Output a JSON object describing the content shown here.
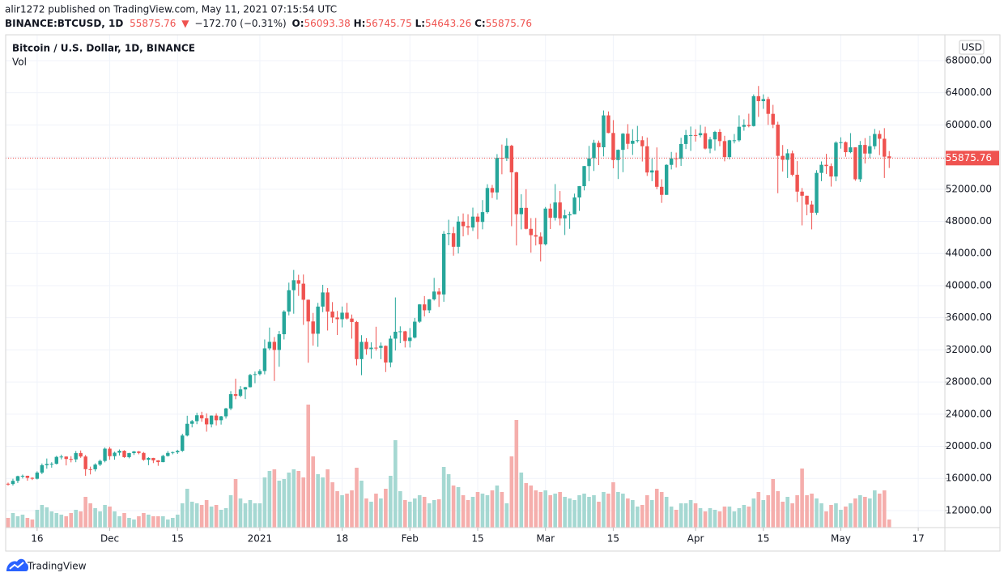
{
  "header": {
    "published": "alir1272 published on TradingView.com, May 11, 2021 07:15:54 UTC",
    "symbol": "BINANCE:BTCUSD, 1D",
    "last": "55875.76",
    "arrow": "▼",
    "change": "−172.70 (−0.31%)",
    "ohlc": [
      {
        "label": "O:",
        "value": "56093.38"
      },
      {
        "label": "H:",
        "value": "56745.75"
      },
      {
        "label": "L:",
        "value": "54643.26"
      },
      {
        "label": "C:",
        "value": "55875.76"
      }
    ]
  },
  "footer": {
    "brand": "TradingView"
  },
  "chart_data": {
    "type": "candlestick",
    "title": "Bitcoin / U.S. Dollar, 1D, BINANCE",
    "volume_label": "Vol",
    "currency": "USD",
    "colors": {
      "up": "#26a69a",
      "down": "#ef5350",
      "volume_up": "#a5d8d2",
      "volume_down": "#f5aeac"
    },
    "grid": true,
    "last_price": 55875.76,
    "ylim": [
      9880,
      71220
    ],
    "yticks": [
      {
        "value": 12000,
        "label": "12000.00"
      },
      {
        "value": 16000,
        "label": "16000.00"
      },
      {
        "value": 20000,
        "label": "20000.00"
      },
      {
        "value": 24000,
        "label": "24000.00"
      },
      {
        "value": 28000,
        "label": "28000.00"
      },
      {
        "value": 32000,
        "label": "32000.00"
      },
      {
        "value": 36000,
        "label": "36000.00"
      },
      {
        "value": 40000,
        "label": "40000.00"
      },
      {
        "value": 44000,
        "label": "44000.00"
      },
      {
        "value": 48000,
        "label": "48000.00"
      },
      {
        "value": 52000,
        "label": "52000.00"
      },
      {
        "value": 56000,
        "label": "56000.00"
      },
      {
        "value": 60000,
        "label": "60000.00"
      },
      {
        "value": 64000,
        "label": "64000.00"
      },
      {
        "value": 68000,
        "label": "68000.00"
      }
    ],
    "xlim": [
      -0.5,
      193.5
    ],
    "xticks": [
      {
        "value": 6,
        "label": "16"
      },
      {
        "value": 21,
        "label": "Dec"
      },
      {
        "value": 35,
        "label": "15"
      },
      {
        "value": 52,
        "label": "2021"
      },
      {
        "value": 69,
        "label": "18"
      },
      {
        "value": 83,
        "label": "Feb"
      },
      {
        "value": 97,
        "label": "15"
      },
      {
        "value": 111,
        "label": "Mar"
      },
      {
        "value": 125,
        "label": "15"
      },
      {
        "value": 142,
        "label": "Apr"
      },
      {
        "value": 156,
        "label": "15"
      },
      {
        "value": 172,
        "label": "May"
      },
      {
        "value": 188,
        "label": "17"
      }
    ],
    "candles": [
      [
        15340,
        15480,
        15100,
        15300
      ],
      [
        15300,
        15960,
        15110,
        15700
      ],
      [
        15700,
        16340,
        15430,
        16280
      ],
      [
        16280,
        16480,
        15990,
        16330
      ],
      [
        16330,
        16340,
        15710,
        16070
      ],
      [
        16070,
        16150,
        15800,
        15960
      ],
      [
        15960,
        16890,
        15870,
        16720
      ],
      [
        16720,
        17860,
        16530,
        17650
      ],
      [
        17650,
        18480,
        17210,
        17800
      ],
      [
        17800,
        18020,
        17340,
        17820
      ],
      [
        17820,
        18810,
        17740,
        18680
      ],
      [
        18680,
        18960,
        18370,
        18720
      ],
      [
        18720,
        18750,
        17620,
        18420
      ],
      [
        18420,
        18770,
        18000,
        18370
      ],
      [
        18370,
        19420,
        18020,
        19160
      ],
      [
        19160,
        19480,
        18560,
        18730
      ],
      [
        18730,
        18920,
        16330,
        17150
      ],
      [
        17150,
        17470,
        16500,
        17140
      ],
      [
        17140,
        17880,
        16880,
        17720
      ],
      [
        17720,
        18350,
        17540,
        18180
      ],
      [
        18180,
        19860,
        18000,
        19700
      ],
      [
        19700,
        19920,
        18320,
        18770
      ],
      [
        18770,
        19340,
        18330,
        19200
      ],
      [
        19200,
        19600,
        18860,
        19440
      ],
      [
        19440,
        19510,
        18560,
        18650
      ],
      [
        18650,
        19180,
        18500,
        19150
      ],
      [
        19150,
        19420,
        18920,
        19360
      ],
      [
        19360,
        19410,
        19000,
        19170
      ],
      [
        19170,
        19290,
        18200,
        18320
      ],
      [
        18320,
        18640,
        17650,
        18550
      ],
      [
        18550,
        18560,
        17910,
        18250
      ],
      [
        18250,
        18270,
        17570,
        18030
      ],
      [
        18030,
        18950,
        18010,
        18800
      ],
      [
        18800,
        19410,
        18720,
        19170
      ],
      [
        19170,
        19350,
        19000,
        19270
      ],
      [
        19270,
        19560,
        19050,
        19440
      ],
      [
        19440,
        21560,
        19300,
        21340
      ],
      [
        21340,
        23800,
        21230,
        22800
      ],
      [
        22800,
        23280,
        22350,
        23130
      ],
      [
        23130,
        24170,
        22750,
        23860
      ],
      [
        23860,
        24300,
        23060,
        23480
      ],
      [
        23480,
        24100,
        21820,
        22730
      ],
      [
        22730,
        23840,
        22350,
        23820
      ],
      [
        23820,
        24100,
        22600,
        23240
      ],
      [
        23240,
        23780,
        22700,
        23730
      ],
      [
        23730,
        24790,
        23450,
        24710
      ],
      [
        24710,
        26870,
        24500,
        26490
      ],
      [
        26490,
        28420,
        25860,
        26280
      ],
      [
        26280,
        27500,
        26100,
        27080
      ],
      [
        27080,
        27400,
        25880,
        27360
      ],
      [
        27360,
        29020,
        27320,
        28880
      ],
      [
        28880,
        29300,
        27850,
        28980
      ],
      [
        28980,
        29600,
        28800,
        29370
      ],
      [
        29370,
        33300,
        28950,
        32190
      ],
      [
        32190,
        34780,
        31950,
        33000
      ],
      [
        33000,
        33600,
        28130,
        31990
      ],
      [
        31990,
        34360,
        29900,
        33950
      ],
      [
        33950,
        36940,
        33300,
        36770
      ],
      [
        36770,
        40370,
        36300,
        39430
      ],
      [
        39430,
        41950,
        36500,
        40670
      ],
      [
        40670,
        41350,
        38720,
        40240
      ],
      [
        40240,
        41380,
        35110,
        38240
      ],
      [
        38240,
        38260,
        30400,
        35540
      ],
      [
        35540,
        36600,
        32530,
        34010
      ],
      [
        34010,
        37850,
        32380,
        37390
      ],
      [
        37390,
        40100,
        36700,
        39150
      ],
      [
        39150,
        39700,
        34410,
        36770
      ],
      [
        36770,
        37950,
        35360,
        36030
      ],
      [
        36030,
        36850,
        33850,
        35820
      ],
      [
        35820,
        37400,
        34800,
        36630
      ],
      [
        36630,
        37850,
        35770,
        35900
      ],
      [
        35900,
        36400,
        33400,
        35470
      ],
      [
        35470,
        35600,
        30070,
        30850
      ],
      [
        30850,
        33830,
        28850,
        33000
      ],
      [
        33000,
        33460,
        31390,
        32100
      ],
      [
        32100,
        32940,
        30900,
        32280
      ],
      [
        32280,
        34880,
        31910,
        32260
      ],
      [
        32260,
        32920,
        30840,
        32500
      ],
      [
        32500,
        32550,
        29240,
        30430
      ],
      [
        30430,
        33780,
        29840,
        33400
      ],
      [
        33400,
        38530,
        31920,
        34260
      ],
      [
        34260,
        34930,
        32840,
        34310
      ],
      [
        34310,
        34370,
        32300,
        33110
      ],
      [
        33110,
        34720,
        32300,
        33530
      ],
      [
        33530,
        35980,
        33420,
        35510
      ],
      [
        35510,
        37700,
        35360,
        37660
      ],
      [
        37660,
        38700,
        36160,
        36930
      ],
      [
        36930,
        38320,
        36570,
        38290
      ],
      [
        38290,
        40960,
        38140,
        39260
      ],
      [
        39260,
        39700,
        37350,
        38900
      ],
      [
        38900,
        46790,
        37990,
        46450
      ],
      [
        46450,
        48200,
        45020,
        46520
      ],
      [
        46520,
        47310,
        43730,
        44840
      ],
      [
        44840,
        48630,
        44000,
        47970
      ],
      [
        47970,
        48980,
        46130,
        47400
      ],
      [
        47400,
        48880,
        46300,
        47230
      ],
      [
        47230,
        49710,
        46800,
        48590
      ],
      [
        48590,
        49000,
        45800,
        47930
      ],
      [
        47930,
        50650,
        47010,
        49150
      ],
      [
        49150,
        52620,
        48950,
        52150
      ],
      [
        52150,
        52530,
        50900,
        51600
      ],
      [
        51600,
        56370,
        50710,
        55900
      ],
      [
        55900,
        57560,
        53860,
        55840
      ],
      [
        55840,
        58350,
        55510,
        57410
      ],
      [
        57410,
        57530,
        47400,
        54100
      ],
      [
        54100,
        54180,
        45000,
        48890
      ],
      [
        48890,
        51370,
        47000,
        49680
      ],
      [
        49680,
        52000,
        46990,
        47070
      ],
      [
        47070,
        48400,
        44100,
        46280
      ],
      [
        46280,
        48420,
        45000,
        46100
      ],
      [
        46100,
        46620,
        43000,
        45140
      ],
      [
        45140,
        49790,
        45000,
        49590
      ],
      [
        49590,
        50200,
        47050,
        48440
      ],
      [
        48440,
        52640,
        48100,
        50350
      ],
      [
        50350,
        51770,
        47500,
        48370
      ],
      [
        48370,
        49450,
        46300,
        48750
      ],
      [
        48750,
        49200,
        47070,
        48880
      ],
      [
        48880,
        51450,
        48880,
        50970
      ],
      [
        50970,
        52400,
        49300,
        52380
      ],
      [
        52380,
        54900,
        51850,
        54880
      ],
      [
        54880,
        57390,
        53000,
        55850
      ],
      [
        55850,
        58150,
        54270,
        57770
      ],
      [
        57770,
        58060,
        55000,
        57220
      ],
      [
        57220,
        61800,
        56080,
        61190
      ],
      [
        61190,
        61680,
        58960,
        59000
      ],
      [
        59000,
        60600,
        54600,
        55630
      ],
      [
        55630,
        56950,
        53270,
        56900
      ],
      [
        56900,
        58990,
        54120,
        58910
      ],
      [
        58910,
        60100,
        57000,
        57650
      ],
      [
        57650,
        59470,
        56260,
        58030
      ],
      [
        58030,
        59880,
        57800,
        58100
      ],
      [
        58100,
        58600,
        55450,
        57350
      ],
      [
        57350,
        58430,
        53650,
        54080
      ],
      [
        54080,
        55830,
        53000,
        54340
      ],
      [
        54340,
        57200,
        52000,
        52300
      ],
      [
        52300,
        53240,
        50300,
        51300
      ],
      [
        51300,
        55100,
        51300,
        55030
      ],
      [
        55030,
        56640,
        54460,
        55840
      ],
      [
        55840,
        56560,
        54700,
        55780
      ],
      [
        55780,
        58400,
        54900,
        57630
      ],
      [
        57630,
        59380,
        57000,
        58740
      ],
      [
        58740,
        59800,
        56770,
        58740
      ],
      [
        58740,
        59460,
        57930,
        58720
      ],
      [
        58720,
        60000,
        58450,
        58970
      ],
      [
        58970,
        59780,
        56950,
        57060
      ],
      [
        57060,
        58500,
        56480,
        58200
      ],
      [
        58200,
        59270,
        56800,
        59130
      ],
      [
        59130,
        59480,
        57350,
        57990
      ],
      [
        57990,
        58650,
        55470,
        56000
      ],
      [
        56000,
        58150,
        55700,
        58090
      ],
      [
        58090,
        58870,
        57700,
        58090
      ],
      [
        58090,
        61200,
        57900,
        59770
      ],
      [
        59770,
        60700,
        59280,
        60000
      ],
      [
        60000,
        61400,
        59700,
        59860
      ],
      [
        59860,
        63800,
        59800,
        63580
      ],
      [
        63580,
        64850,
        61000,
        62960
      ],
      [
        62960,
        63800,
        62000,
        63220
      ],
      [
        63220,
        63500,
        60000,
        61380
      ],
      [
        61380,
        62500,
        59600,
        60040
      ],
      [
        60040,
        60400,
        51500,
        56150
      ],
      [
        56150,
        57500,
        54200,
        55660
      ],
      [
        55660,
        57000,
        53400,
        56470
      ],
      [
        56470,
        56800,
        53600,
        53800
      ],
      [
        53800,
        55500,
        50400,
        51700
      ],
      [
        51700,
        52150,
        47500,
        51190
      ],
      [
        51190,
        51200,
        48750,
        50100
      ],
      [
        50100,
        50560,
        47000,
        49070
      ],
      [
        49070,
        54370,
        48800,
        54030
      ],
      [
        54030,
        55460,
        53000,
        55040
      ],
      [
        55040,
        56400,
        53900,
        54880
      ],
      [
        54880,
        55200,
        52330,
        53580
      ],
      [
        53580,
        57960,
        53000,
        57800
      ],
      [
        57800,
        58460,
        57050,
        57850
      ],
      [
        57850,
        57950,
        56040,
        56610
      ],
      [
        56610,
        58980,
        56480,
        57210
      ],
      [
        57210,
        57220,
        53050,
        53240
      ],
      [
        53240,
        58000,
        52900,
        57510
      ],
      [
        57510,
        58360,
        55200,
        56440
      ],
      [
        56440,
        58650,
        55880,
        57350
      ],
      [
        57350,
        59500,
        56970,
        58870
      ],
      [
        58870,
        59300,
        56240,
        58280
      ],
      [
        58280,
        59600,
        53400,
        56050
      ],
      [
        56093.38,
        56745.75,
        54643.26,
        55875.76
      ]
    ],
    "volume": [
      12,
      18,
      14,
      16,
      12,
      10,
      22,
      28,
      25,
      20,
      18,
      16,
      14,
      18,
      22,
      20,
      38,
      30,
      24,
      20,
      28,
      26,
      20,
      14,
      18,
      12,
      10,
      14,
      18,
      16,
      14,
      14,
      14,
      10,
      12,
      16,
      30,
      48,
      32,
      30,
      28,
      34,
      26,
      28,
      22,
      24,
      40,
      60,
      36,
      30,
      34,
      30,
      30,
      62,
      70,
      72,
      58,
      60,
      68,
      72,
      70,
      62,
      152,
      88,
      66,
      62,
      72,
      56,
      45,
      40,
      42,
      46,
      74,
      58,
      36,
      32,
      42,
      36,
      48,
      64,
      108,
      45,
      34,
      32,
      36,
      40,
      38,
      30,
      34,
      35,
      75,
      66,
      52,
      50,
      40,
      34,
      38,
      44,
      42,
      40,
      46,
      52,
      44,
      30,
      88,
      133,
      68,
      55,
      52,
      46,
      44,
      46,
      40,
      42,
      44,
      38,
      36,
      34,
      40,
      42,
      38,
      40,
      32,
      44,
      42,
      56,
      44,
      42,
      36,
      34,
      26,
      28,
      40,
      34,
      48,
      44,
      38,
      26,
      22,
      30,
      30,
      34,
      30,
      24,
      20,
      24,
      22,
      20,
      26,
      26,
      20,
      24,
      28,
      26,
      36,
      44,
      34,
      40,
      60,
      45,
      32,
      38,
      30,
      40,
      73,
      40,
      42,
      36,
      30,
      20,
      28,
      30,
      22,
      26,
      30,
      36,
      40,
      38,
      36,
      46,
      42,
      46,
      10
    ]
  }
}
